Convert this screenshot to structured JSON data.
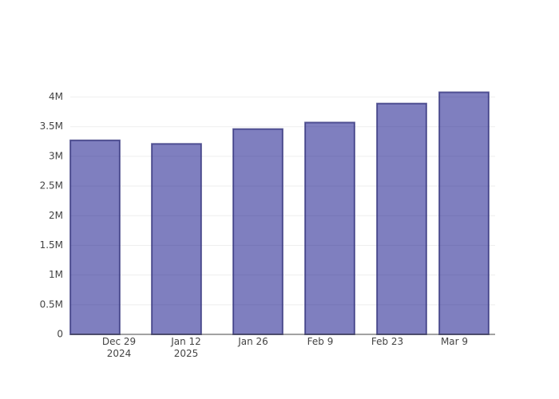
{
  "chart_data": {
    "type": "bar",
    "x": [
      "2024-12-24",
      "2025-01-10",
      "2025-01-27",
      "2025-02-11",
      "2025-02-26",
      "2025-03-11"
    ],
    "values": [
      3270000,
      3210000,
      3460000,
      3570000,
      3890000,
      4080000
    ],
    "color": "#000080",
    "xlim": [
      "2024-12-18T20:00",
      "2025-03-17T12:00"
    ],
    "xticks": [
      {
        "value": "2024-12-29",
        "label": "Dec 29\n2024"
      },
      {
        "value": "2025-01-12",
        "label": "Jan 12\n2025"
      },
      {
        "value": "2025-01-26",
        "label": "Jan 26"
      },
      {
        "value": "2025-02-09",
        "label": "Feb 9"
      },
      {
        "value": "2025-02-23",
        "label": "Feb 23"
      },
      {
        "value": "2025-03-09",
        "label": "Mar 9"
      }
    ],
    "ylim": [
      0,
      4290000
    ],
    "yticks": [
      0,
      {
        "value": 500000,
        "label": "0.5M"
      },
      {
        "value": 1000000,
        "label": "1M"
      },
      {
        "value": 1500000,
        "label": "1.5M"
      },
      {
        "value": 2000000,
        "label": "2M"
      },
      {
        "value": 2500000,
        "label": "2.5M"
      },
      {
        "value": 3000000,
        "label": "3M"
      },
      {
        "value": 3500000,
        "label": "3.5M"
      },
      {
        "value": 4000000,
        "label": "4M"
      }
    ],
    "grid": true
  }
}
